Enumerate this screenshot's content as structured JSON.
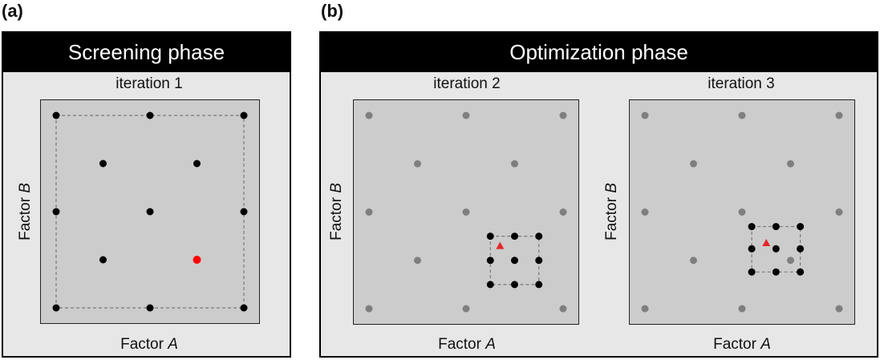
{
  "panels": {
    "a": {
      "label": "(a)",
      "header": "Screening phase"
    },
    "b": {
      "label": "(b)",
      "header": "Optimization phase"
    }
  },
  "axes": {
    "x_text": "Factor ",
    "x_var": "A",
    "y_text": "Factor ",
    "y_var": "B"
  },
  "iterations": [
    {
      "title": "iteration 1",
      "design_points": [
        [
          -1,
          1
        ],
        [
          0,
          1
        ],
        [
          1,
          1
        ],
        [
          -0.5,
          0.5
        ],
        [
          0.5,
          0.5
        ],
        [
          -1,
          0
        ],
        [
          0,
          0
        ],
        [
          1,
          0
        ],
        [
          -0.5,
          -0.5
        ],
        [
          -1,
          -1
        ],
        [
          0,
          -1
        ],
        [
          1,
          -1
        ]
      ],
      "best_point": [
        0.5,
        -0.5
      ],
      "region": [
        -1,
        1,
        -1,
        1
      ],
      "prev_points": [],
      "prev_best_triangle": null
    },
    {
      "title": "iteration 2",
      "prev_points": [
        [
          -1,
          1
        ],
        [
          0,
          1
        ],
        [
          1,
          1
        ],
        [
          -0.5,
          0.5
        ],
        [
          0.5,
          0.5
        ],
        [
          -1,
          0
        ],
        [
          0,
          0
        ],
        [
          1,
          0
        ],
        [
          -0.5,
          -0.5
        ],
        [
          0.5,
          -0.5
        ],
        [
          -1,
          -1
        ],
        [
          0,
          -1
        ],
        [
          1,
          -1
        ]
      ],
      "design_points": [
        [
          0.25,
          -0.25
        ],
        [
          0.5,
          -0.25
        ],
        [
          0.75,
          -0.25
        ],
        [
          0.25,
          -0.5
        ],
        [
          0.5,
          -0.5
        ],
        [
          0.75,
          -0.5
        ],
        [
          0.25,
          -0.75
        ],
        [
          0.5,
          -0.75
        ],
        [
          0.75,
          -0.75
        ]
      ],
      "best_point": null,
      "prev_best_triangle": [
        0.35,
        -0.35
      ],
      "region": [
        0.25,
        0.75,
        -0.75,
        -0.25
      ]
    },
    {
      "title": "iteration 3",
      "prev_points": [
        [
          -1,
          1
        ],
        [
          0,
          1
        ],
        [
          1,
          1
        ],
        [
          -0.5,
          0.5
        ],
        [
          0.5,
          0.5
        ],
        [
          -1,
          0
        ],
        [
          0,
          0
        ],
        [
          1,
          0
        ],
        [
          -0.5,
          -0.5
        ],
        [
          0.5,
          -0.5
        ],
        [
          -1,
          -1
        ],
        [
          0,
          -1
        ],
        [
          1,
          -1
        ]
      ],
      "design_points": [
        [
          0.1,
          -0.15
        ],
        [
          0.35,
          -0.15
        ],
        [
          0.6,
          -0.15
        ],
        [
          0.1,
          -0.38
        ],
        [
          0.35,
          -0.38
        ],
        [
          0.6,
          -0.38
        ],
        [
          0.1,
          -0.62
        ],
        [
          0.35,
          -0.62
        ],
        [
          0.6,
          -0.62
        ]
      ],
      "best_point": null,
      "prev_best_triangle": [
        0.25,
        -0.32
      ],
      "region": [
        0.1,
        0.6,
        -0.62,
        -0.15
      ]
    }
  ],
  "colors": {
    "point": "#000000",
    "prev_point": "#7f7f7f",
    "best": "#ff0000",
    "triangle": "#e32626",
    "plot_bg": "#cccccc",
    "dash": "#7a7a7a"
  }
}
